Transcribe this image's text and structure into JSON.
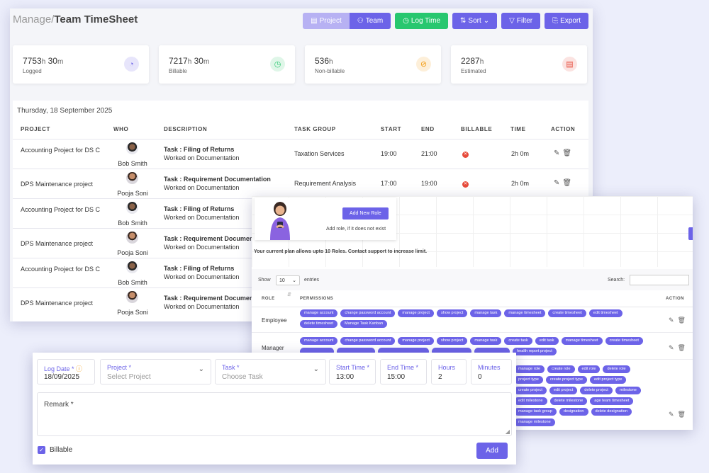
{
  "breadcrumb": {
    "parent": "Manage/",
    "current": "Team TimeSheet"
  },
  "toolbar": {
    "project": "Project",
    "team": "Team",
    "log_time": "Log Time",
    "sort": "Sort",
    "filter": "Filter",
    "export": "Export"
  },
  "stats": [
    {
      "value": "7753",
      "unit1": "h",
      "value2": " 30",
      "unit2": "m",
      "label": "Logged",
      "icon": "clock-icon",
      "color": "#6c63e8",
      "bg": "#e7e5fb"
    },
    {
      "value": "7217",
      "unit1": "h",
      "value2": " 30",
      "unit2": "m",
      "label": "Billable",
      "icon": "clock-check-icon",
      "color": "#28c76f",
      "bg": "#dff6e8"
    },
    {
      "value": "536",
      "unit1": "h",
      "value2": "",
      "unit2": "",
      "label": "Non-billable",
      "icon": "no-billing-icon",
      "color": "#f39c12",
      "bg": "#fdefd9"
    },
    {
      "value": "2287",
      "unit1": "h",
      "value2": "",
      "unit2": "",
      "label": "Estimated",
      "icon": "document-icon",
      "color": "#e74c3c",
      "bg": "#fbe3e1"
    }
  ],
  "table": {
    "date": "Thursday, 18 September 2025",
    "headers": {
      "project": "PROJECT",
      "who": "WHO",
      "description": "DESCRIPTION",
      "task_group": "TASK GROUP",
      "start": "START",
      "end": "END",
      "billable": "BILLABLE",
      "time": "TIME",
      "action": "ACTION"
    },
    "rows": [
      {
        "project": "Accounting Project for DS C",
        "who": "Bob Smith",
        "task": "Task : Filing of Returns",
        "sub": "Worked on Documentation",
        "group": "Taxation Services",
        "start": "19:00",
        "end": "21:00",
        "time": "2h 0m"
      },
      {
        "project": "DPS Maintenance project",
        "who": "Pooja Soni",
        "task": "Task : Requirement Documentation",
        "sub": "Worked on Documentation",
        "group": "Requirement Analysis",
        "start": "17:00",
        "end": "19:00",
        "time": "2h 0m"
      },
      {
        "project": "Accounting Project for DS C",
        "who": "Bob Smith",
        "task": "Task : Filing of Returns",
        "sub": "Worked on Documentation",
        "group": "",
        "start": "",
        "end": "",
        "time": ""
      },
      {
        "project": "DPS Maintenance project",
        "who": "Pooja Soni",
        "task": "Task : Requirement Documentati",
        "sub": "Worked on Documentation",
        "group": "",
        "start": "",
        "end": "",
        "time": ""
      },
      {
        "project": "Accounting Project for DS C",
        "who": "Bob Smith",
        "task": "Task : Filing of Returns",
        "sub": "Worked on Documentation",
        "group": "",
        "start": "",
        "end": "",
        "time": ""
      },
      {
        "project": "DPS Maintenance project",
        "who": "Pooja Soni",
        "task": "Task : Requirement Documentati",
        "sub": "Worked on Documentation",
        "group": "",
        "start": "",
        "end": "",
        "time": ""
      }
    ]
  },
  "roles": {
    "add_button": "Add New Role",
    "add_note": "Add role, if it does not exist",
    "plan_message": "Your current plan allows upto 10 Roles. Contact support to increase limit.",
    "show": "Show",
    "entries_value": "10",
    "entries": "entries",
    "search": "Search:",
    "headers": {
      "role": "ROLE",
      "permissions": "PERMISSIONS",
      "action": "ACTION"
    },
    "rows": [
      {
        "name": "Employee",
        "permissions": [
          "manage account",
          "change password account",
          "manage project",
          "show project",
          "manage task",
          "manage timesheet",
          "create timesheet",
          "edit timesheet",
          "delete timesheet",
          "Manage Task Kanban"
        ]
      },
      {
        "name": "Manager",
        "permissions": [
          "manage account",
          "change password account",
          "manage project",
          "show project",
          "manage task",
          "create task",
          "edit task",
          "manage timesheet",
          "create timesheet",
          "",
          "",
          "",
          "",
          "",
          "health report project"
        ]
      },
      {
        "name": "",
        "permissions": [
          "manage role",
          "create role",
          "edit role",
          "delete role",
          "project type",
          "create project type",
          "edit project type",
          "create project",
          "edit project",
          "delete project",
          "milestone",
          "edit milestone",
          "delete milestone",
          "age team timesheet",
          "manage task group",
          "designation",
          "delete designation",
          "manage milestone"
        ]
      }
    ]
  },
  "form": {
    "log_date": {
      "label": "Log Date *",
      "value": "18/09/2025"
    },
    "project": {
      "label": "Project *",
      "placeholder": "Select Project"
    },
    "task": {
      "label": "Task *",
      "placeholder": "Choose Task"
    },
    "start_time": {
      "label": "Start Time *",
      "value": "13:00"
    },
    "end_time": {
      "label": "End Time *",
      "value": "15:00"
    },
    "hours": {
      "label": "Hours",
      "value": "2"
    },
    "minutes": {
      "label": "Minutes",
      "value": "0"
    },
    "remark": "Remark *",
    "billable": "Billable",
    "add": "Add"
  }
}
